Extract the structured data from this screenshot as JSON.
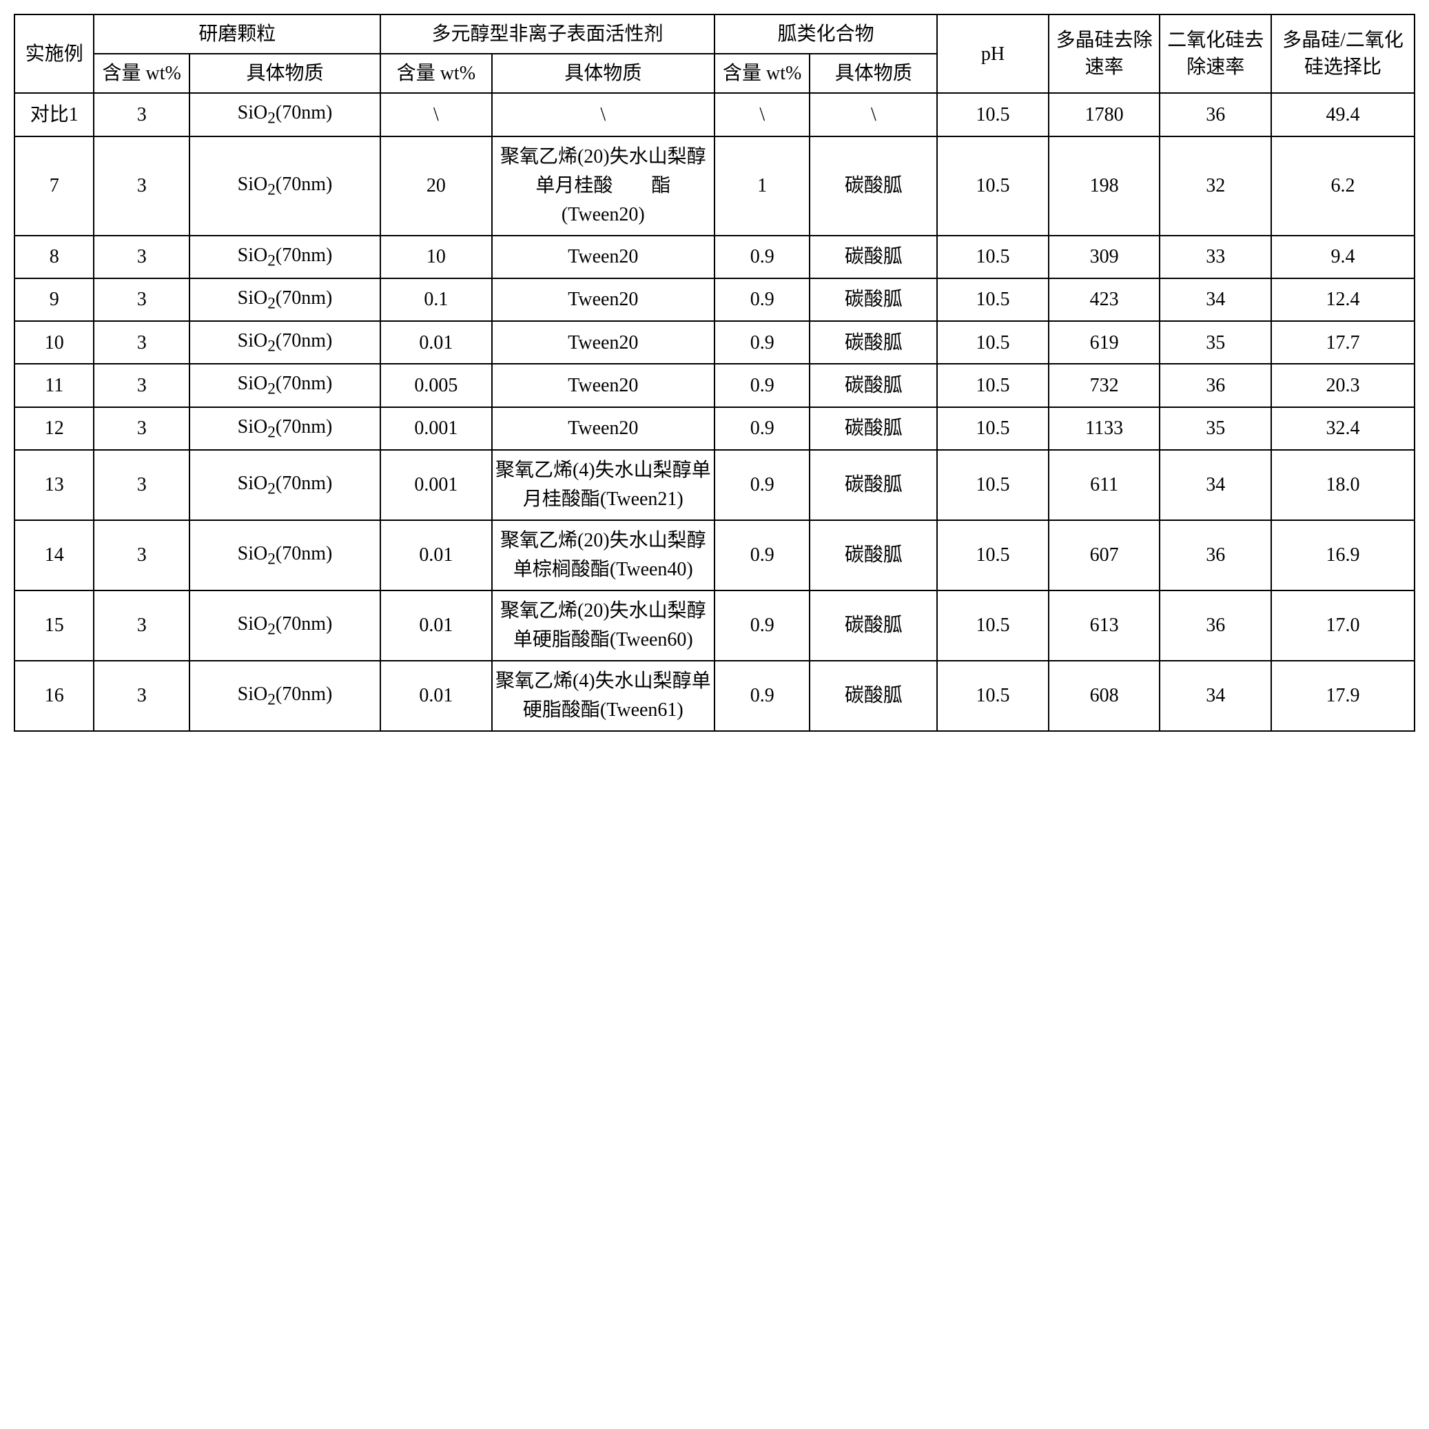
{
  "headers": {
    "example": "实施例",
    "abrasive": "研磨颗粒",
    "surfactant": "多元醇型非离子表面活性剂",
    "guanidine": "胍类化合物",
    "ph": "pH",
    "poly_rate": "多晶硅去除速率",
    "sio2_rate": "二氧化硅去除速率",
    "ratio": "多晶硅/二氧化硅选择比",
    "content_wt": "含量\nwt%",
    "substance": "具体物质",
    "substance_short": "具体物质"
  },
  "rows": [
    {
      "ex": "对比1",
      "c1": "3",
      "s1": "SiO₂(70nm)",
      "c2": "\\",
      "s2": "\\",
      "c3": "\\",
      "s3": "\\",
      "ph": "10.5",
      "poly": "1780",
      "sio2": "36",
      "ratio": "49.4"
    },
    {
      "ex": "7",
      "c1": "3",
      "s1": "SiO₂(70nm)",
      "c2": "20",
      "s2": "聚氧乙烯(20)失水山梨醇单月桂酸　　酯(Tween20)",
      "c3": "1",
      "s3": "碳酸胍",
      "ph": "10.5",
      "poly": "198",
      "sio2": "32",
      "ratio": "6.2"
    },
    {
      "ex": "8",
      "c1": "3",
      "s1": "SiO₂(70nm)",
      "c2": "10",
      "s2": "Tween20",
      "c3": "0.9",
      "s3": "碳酸胍",
      "ph": "10.5",
      "poly": "309",
      "sio2": "33",
      "ratio": "9.4"
    },
    {
      "ex": "9",
      "c1": "3",
      "s1": "SiO₂(70nm)",
      "c2": "0.1",
      "s2": "Tween20",
      "c3": "0.9",
      "s3": "碳酸胍",
      "ph": "10.5",
      "poly": "423",
      "sio2": "34",
      "ratio": "12.4"
    },
    {
      "ex": "10",
      "c1": "3",
      "s1": "SiO₂(70nm)",
      "c2": "0.01",
      "s2": "Tween20",
      "c3": "0.9",
      "s3": "碳酸胍",
      "ph": "10.5",
      "poly": "619",
      "sio2": "35",
      "ratio": "17.7"
    },
    {
      "ex": "11",
      "c1": "3",
      "s1": "SiO₂(70nm)",
      "c2": "0.005",
      "s2": "Tween20",
      "c3": "0.9",
      "s3": "碳酸胍",
      "ph": "10.5",
      "poly": "732",
      "sio2": "36",
      "ratio": "20.3"
    },
    {
      "ex": "12",
      "c1": "3",
      "s1": "SiO₂(70nm)",
      "c2": "0.001",
      "s2": "Tween20",
      "c3": "0.9",
      "s3": "碳酸胍",
      "ph": "10.5",
      "poly": "1133",
      "sio2": "35",
      "ratio": "32.4"
    },
    {
      "ex": "13",
      "c1": "3",
      "s1": "SiO₂(70nm)",
      "c2": "0.001",
      "s2": "聚氧乙烯(4)失水山梨醇单月桂酸酯(Tween21)",
      "c3": "0.9",
      "s3": "碳酸胍",
      "ph": "10.5",
      "poly": "611",
      "sio2": "34",
      "ratio": "18.0"
    },
    {
      "ex": "14",
      "c1": "3",
      "s1": "SiO₂(70nm)",
      "c2": "0.01",
      "s2": "聚氧乙烯(20)失水山梨醇单棕榈酸酯(Tween40)",
      "c3": "0.9",
      "s3": "碳酸胍",
      "ph": "10.5",
      "poly": "607",
      "sio2": "36",
      "ratio": "16.9"
    },
    {
      "ex": "15",
      "c1": "3",
      "s1": "SiO₂(70nm)",
      "c2": "0.01",
      "s2": "聚氧乙烯(20)失水山梨醇单硬脂酸酯(Tween60)",
      "c3": "0.9",
      "s3": "碳酸胍",
      "ph": "10.5",
      "poly": "613",
      "sio2": "36",
      "ratio": "17.0"
    },
    {
      "ex": "16",
      "c1": "3",
      "s1": "SiO₂(70nm)",
      "c2": "0.01",
      "s2": "聚氧乙烯(4)失水山梨醇单硬脂酸酯(Tween61)",
      "c3": "0.9",
      "s3": "碳酸胍",
      "ph": "10.5",
      "poly": "608",
      "sio2": "34",
      "ratio": "17.9"
    }
  ],
  "style": {
    "border_color": "#000000",
    "background_color": "#ffffff",
    "font_size": 28,
    "text_color": "#000000"
  }
}
